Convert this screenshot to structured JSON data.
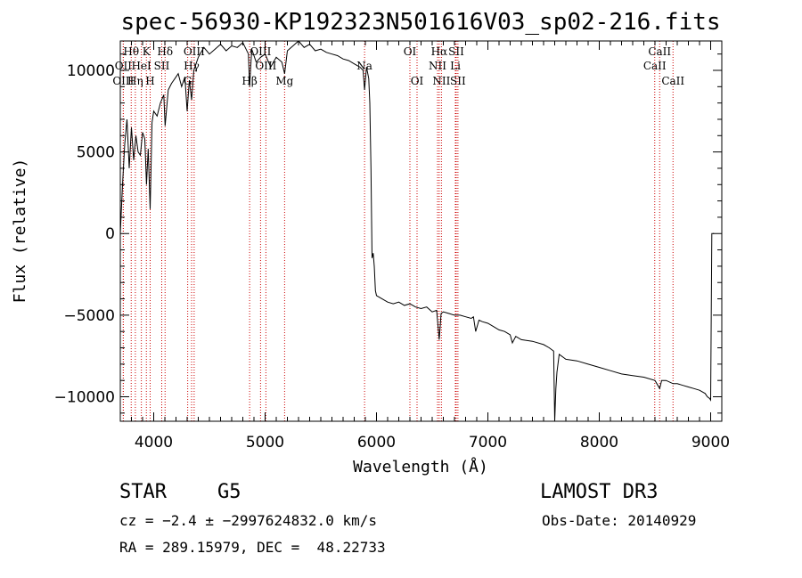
{
  "chart_data": {
    "type": "line",
    "title": "spec-56930-KP192323N501616V03_sp02-216.fits",
    "xlabel": "Wavelength (Å)",
    "ylabel": "Flux (relative)",
    "xlim": [
      3700,
      9100
    ],
    "ylim": [
      -11500,
      11800
    ],
    "xticks": [
      4000,
      5000,
      6000,
      7000,
      8000,
      9000
    ],
    "yticks": [
      -10000,
      -5000,
      0,
      5000,
      10000
    ],
    "x_tick_labels": [
      "4000",
      "5000",
      "6000",
      "7000",
      "8000",
      "9000"
    ],
    "y_tick_labels": [
      "−10000",
      "−5000",
      "0",
      "5000",
      "10000"
    ],
    "series": [
      {
        "name": "flux",
        "x": [
          3700,
          3720,
          3740,
          3760,
          3780,
          3800,
          3820,
          3840,
          3860,
          3880,
          3900,
          3920,
          3935,
          3950,
          3968,
          3985,
          4000,
          4030,
          4060,
          4090,
          4102,
          4130,
          4160,
          4190,
          4220,
          4250,
          4280,
          4300,
          4320,
          4340,
          4360,
          4400,
          4450,
          4500,
          4550,
          4600,
          4650,
          4700,
          4750,
          4800,
          4850,
          4861,
          4880,
          4920,
          4960,
          5000,
          5050,
          5100,
          5150,
          5175,
          5200,
          5250,
          5300,
          5350,
          5400,
          5450,
          5500,
          5550,
          5600,
          5650,
          5700,
          5750,
          5800,
          5850,
          5880,
          5893,
          5910,
          5930,
          5940,
          5950,
          5960,
          5970,
          5980,
          5990,
          6000,
          6050,
          6100,
          6150,
          6200,
          6250,
          6300,
          6350,
          6400,
          6450,
          6500,
          6540,
          6563,
          6580,
          6600,
          6650,
          6700,
          6750,
          6800,
          6850,
          6870,
          6890,
          6920,
          6950,
          7000,
          7050,
          7100,
          7150,
          7200,
          7220,
          7250,
          7300,
          7400,
          7500,
          7550,
          7590,
          7600,
          7610,
          7620,
          7640,
          7660,
          7680,
          7700,
          7800,
          7900,
          8000,
          8100,
          8200,
          8300,
          8400,
          8500,
          8542,
          8560,
          8600,
          8662,
          8700,
          8750,
          8800,
          8850,
          8900,
          8950,
          8970,
          8990,
          9000,
          9010,
          9030
        ],
        "values": [
          0,
          3000,
          5500,
          7000,
          4000,
          6500,
          4500,
          6000,
          5000,
          4800,
          6200,
          5800,
          3000,
          5200,
          1500,
          6800,
          7500,
          7200,
          8000,
          8500,
          6600,
          8800,
          9200,
          9500,
          9800,
          9000,
          9600,
          7500,
          9400,
          8200,
          10000,
          10800,
          11400,
          11000,
          11300,
          11600,
          11200,
          11500,
          11400,
          11700,
          11000,
          9000,
          11300,
          10500,
          10800,
          11000,
          10200,
          10800,
          10500,
          9800,
          11200,
          11500,
          11800,
          11400,
          11600,
          11200,
          11300,
          11100,
          11000,
          10900,
          10700,
          10600,
          10400,
          10200,
          10000,
          8800,
          10200,
          9500,
          8000,
          4000,
          -1500,
          -1200,
          -2000,
          -3500,
          -3800,
          -4000,
          -4200,
          -4300,
          -4200,
          -4400,
          -4300,
          -4500,
          -4600,
          -4500,
          -4800,
          -4700,
          -6500,
          -4900,
          -4800,
          -4900,
          -5000,
          -5000,
          -5100,
          -5200,
          -5100,
          -6000,
          -5300,
          -5400,
          -5500,
          -5700,
          -5900,
          -6000,
          -6200,
          -6700,
          -6300,
          -6500,
          -6600,
          -6800,
          -7000,
          -7200,
          -11500,
          -9500,
          -8500,
          -7400,
          -7500,
          -7600,
          -7700,
          -7800,
          -8000,
          -8200,
          -8400,
          -8600,
          -8700,
          -8800,
          -9000,
          -9500,
          -9000,
          -9000,
          -9200,
          -9200,
          -9300,
          -9400,
          -9500,
          -9600,
          -9800,
          -10000,
          -10100,
          -10200,
          0,
          0
        ]
      }
    ],
    "line_marks": [
      {
        "label": "Hθ",
        "x": 3798,
        "row": 1
      },
      {
        "label": "OII",
        "x": 3727,
        "row": 2
      },
      {
        "label": "OIII",
        "x": 3727,
        "row": 3
      },
      {
        "label": "K",
        "x": 3934,
        "row": 1
      },
      {
        "label": "HeI",
        "x": 3889,
        "row": 2
      },
      {
        "label": "Hη",
        "x": 3835,
        "row": 3
      },
      {
        "label": "SII",
        "x": 4072,
        "row": 2
      },
      {
        "label": "H",
        "x": 3968,
        "row": 3
      },
      {
        "label": "Hδ",
        "x": 4102,
        "row": 1
      },
      {
        "label": "OIII",
        "x": 4363,
        "row": 1
      },
      {
        "label": "Hγ",
        "x": 4340,
        "row": 2
      },
      {
        "label": "G",
        "x": 4305,
        "row": 3
      },
      {
        "label": "OIII",
        "x": 4959,
        "row": 1
      },
      {
        "label": "OIII",
        "x": 5007,
        "row": 2
      },
      {
        "label": "Hβ",
        "x": 4861,
        "row": 3
      },
      {
        "label": "Mg",
        "x": 5175,
        "row": 3
      },
      {
        "label": "Na",
        "x": 5893,
        "row": 2
      },
      {
        "label": "OI",
        "x": 6300,
        "row": 1
      },
      {
        "label": "OI",
        "x": 6364,
        "row": 3
      },
      {
        "label": "Hα",
        "x": 6563,
        "row": 1
      },
      {
        "label": "SII",
        "x": 6716,
        "row": 1
      },
      {
        "label": "NII",
        "x": 6548,
        "row": 2
      },
      {
        "label": "Li",
        "x": 6708,
        "row": 2
      },
      {
        "label": "NII",
        "x": 6583,
        "row": 3
      },
      {
        "label": "SII",
        "x": 6731,
        "row": 3
      },
      {
        "label": "CaII",
        "x": 8542,
        "row": 1
      },
      {
        "label": "CaII",
        "x": 8498,
        "row": 2
      },
      {
        "label": "CaII",
        "x": 8662,
        "row": 3
      }
    ]
  },
  "info": {
    "object_class": "STAR",
    "subclass": "G5",
    "survey": "LAMOST DR3",
    "redshift": "cz = −2.4 ± −2997624832.0 km/s",
    "obs_date": "Obs-Date: 20140929",
    "coords": "RA = 289.15979, DEC =  48.22733"
  }
}
